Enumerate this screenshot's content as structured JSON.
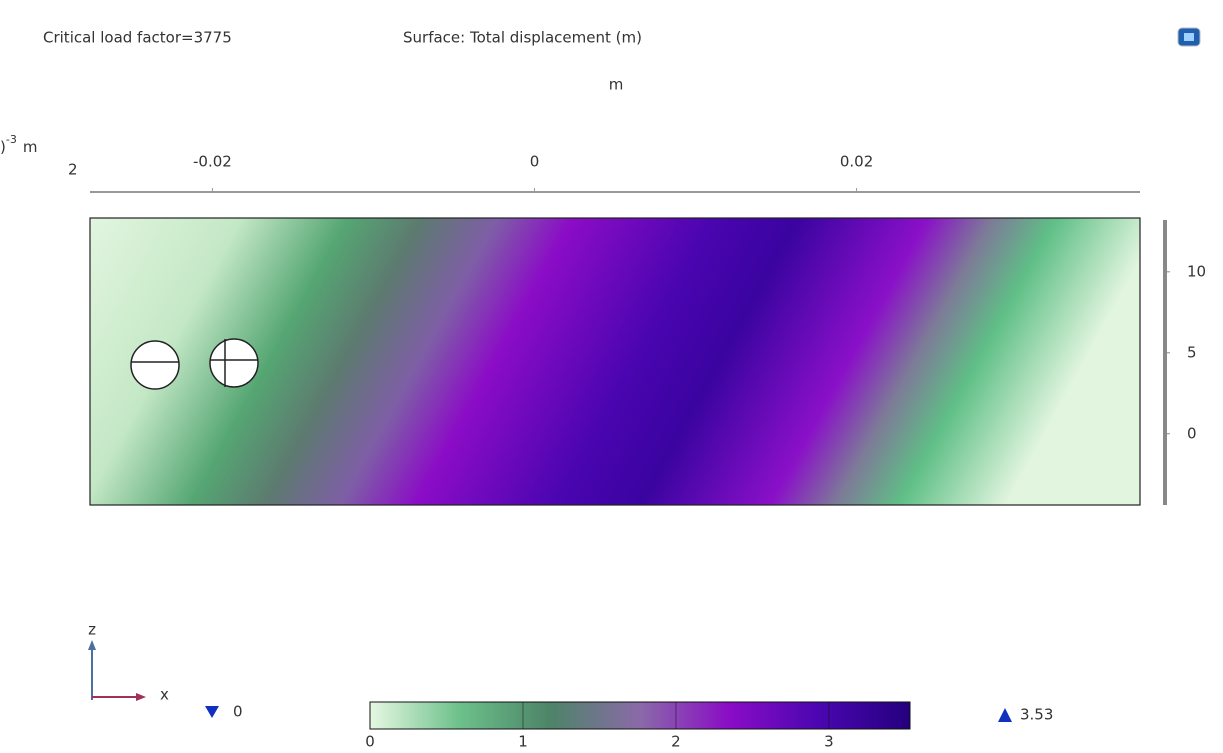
{
  "chart_data": {
    "type": "surface",
    "title": "Critical load factor=3775",
    "subtitle": "Surface: Total displacement (m)",
    "x_label": "m",
    "y_label_base": ")",
    "y_label_exp": "-3",
    "y_label_unit": "m",
    "y_clipped_tick": "2",
    "xlim": [
      -0.0276,
      0.0376
    ],
    "xticks": [
      -0.02,
      0,
      0.02
    ],
    "ylim": [
      -4.4,
      13.2
    ],
    "yticks": [
      0,
      5,
      10
    ],
    "clim": [
      0,
      3.53
    ],
    "cticks": [
      0,
      1,
      2,
      3
    ],
    "colormap": [
      "#e6f8e2",
      "#6cc08a",
      "#4d8468",
      "#8a6aa8",
      "#8a0cc6",
      "#4a06b0",
      "#24007e"
    ],
    "axis_x": "x",
    "axis_z": "z"
  }
}
